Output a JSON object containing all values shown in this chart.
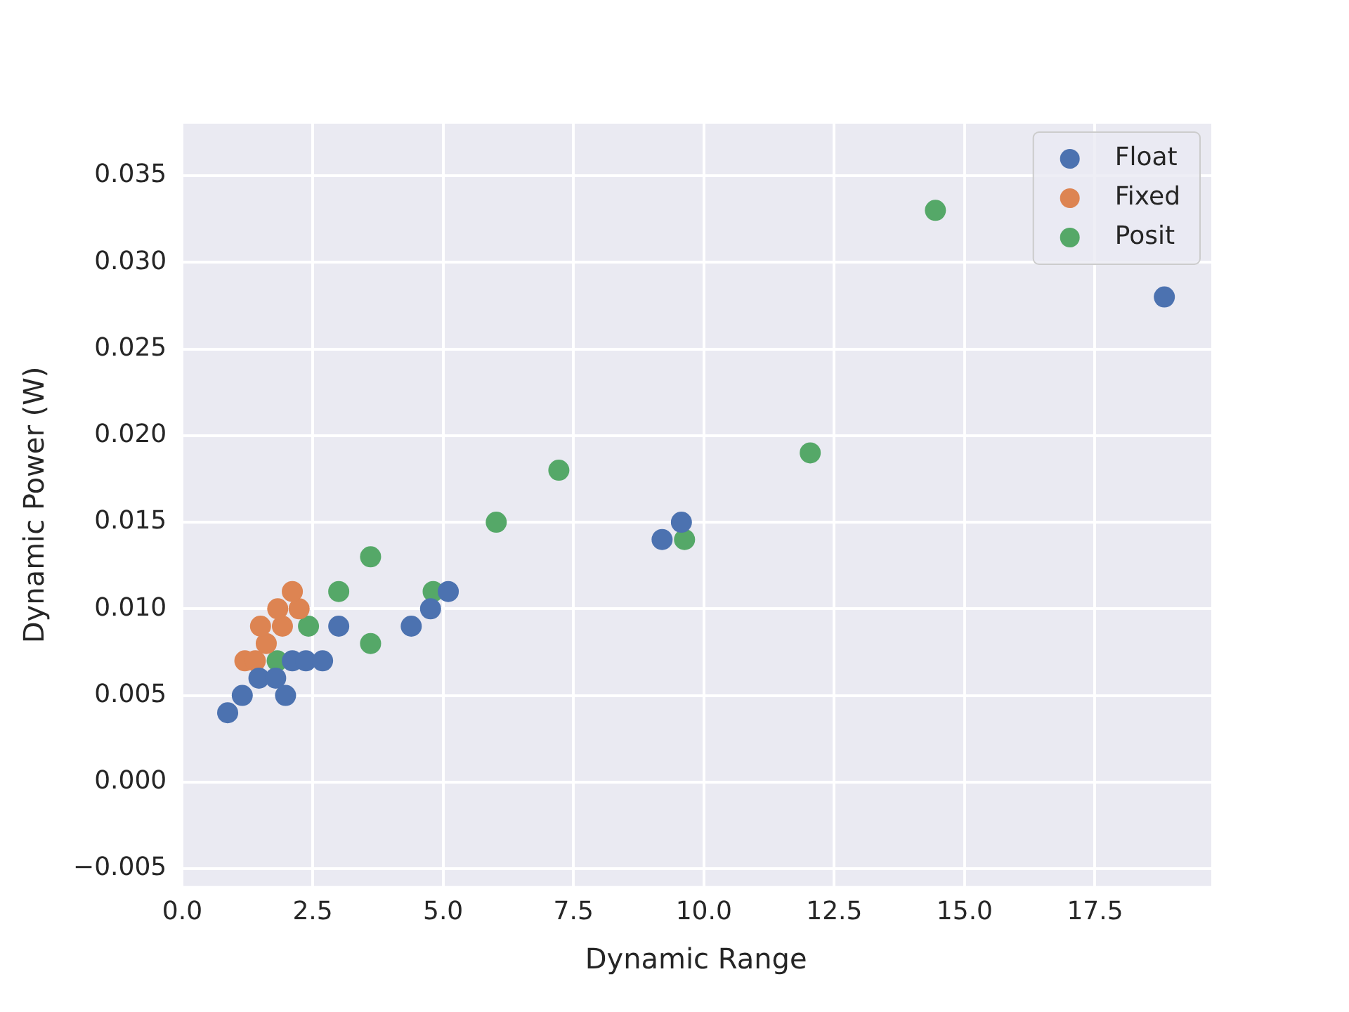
{
  "chart_data": {
    "type": "scatter",
    "xlabel": "Dynamic Range",
    "ylabel": "Dynamic Power (W)",
    "xlim": [
      -0.03,
      19.73
    ],
    "ylim": [
      -0.006,
      0.038
    ],
    "xticks": [
      {
        "value": 0,
        "label": "0.0"
      },
      2.5,
      {
        "value": 5,
        "label": "5.0"
      },
      7.5,
      {
        "value": 10,
        "label": "10.0"
      },
      12.5,
      {
        "value": 15,
        "label": "15.0"
      },
      17.5
    ],
    "yticks": [
      {
        "value": -0.005,
        "label": "−0.005"
      },
      {
        "value": 0,
        "label": "0.000"
      },
      {
        "value": 0.005,
        "label": "0.005"
      },
      {
        "value": 0.01,
        "label": "0.010"
      },
      0.015,
      {
        "value": 0.02,
        "label": "0.020"
      },
      0.025,
      {
        "value": 0.03,
        "label": "0.030"
      },
      0.035
    ],
    "grid": true,
    "legend": "top right",
    "marker": "circle",
    "series": [
      {
        "name": "Float",
        "color": "#4c72b0",
        "x": [
          0.87,
          1.15,
          1.47,
          1.79,
          1.98,
          2.11,
          2.37,
          2.69,
          3.0,
          4.39,
          4.76,
          5.1,
          9.2,
          9.57,
          18.83
        ],
        "values": [
          0.004,
          0.005,
          0.006,
          0.006,
          0.005,
          0.007,
          0.007,
          0.007,
          0.009,
          0.009,
          0.01,
          0.011,
          0.014,
          0.015,
          0.028
        ]
      },
      {
        "name": "Fixed",
        "color": "#dd8452",
        "x": [
          1.2,
          1.4,
          1.61,
          1.5,
          1.92,
          1.83,
          2.24,
          2.11
        ],
        "values": [
          0.007,
          0.007,
          0.008,
          0.009,
          0.009,
          0.01,
          0.01,
          0.011
        ]
      },
      {
        "name": "Posit",
        "color": "#55a868",
        "x": [
          1.82,
          2.42,
          3.0,
          3.61,
          3.61,
          4.81,
          6.02,
          7.22,
          9.63,
          12.04,
          14.44
        ],
        "values": [
          0.007,
          0.009,
          0.011,
          0.013,
          0.008,
          0.011,
          0.015,
          0.018,
          0.014,
          0.019,
          0.033
        ]
      }
    ]
  }
}
